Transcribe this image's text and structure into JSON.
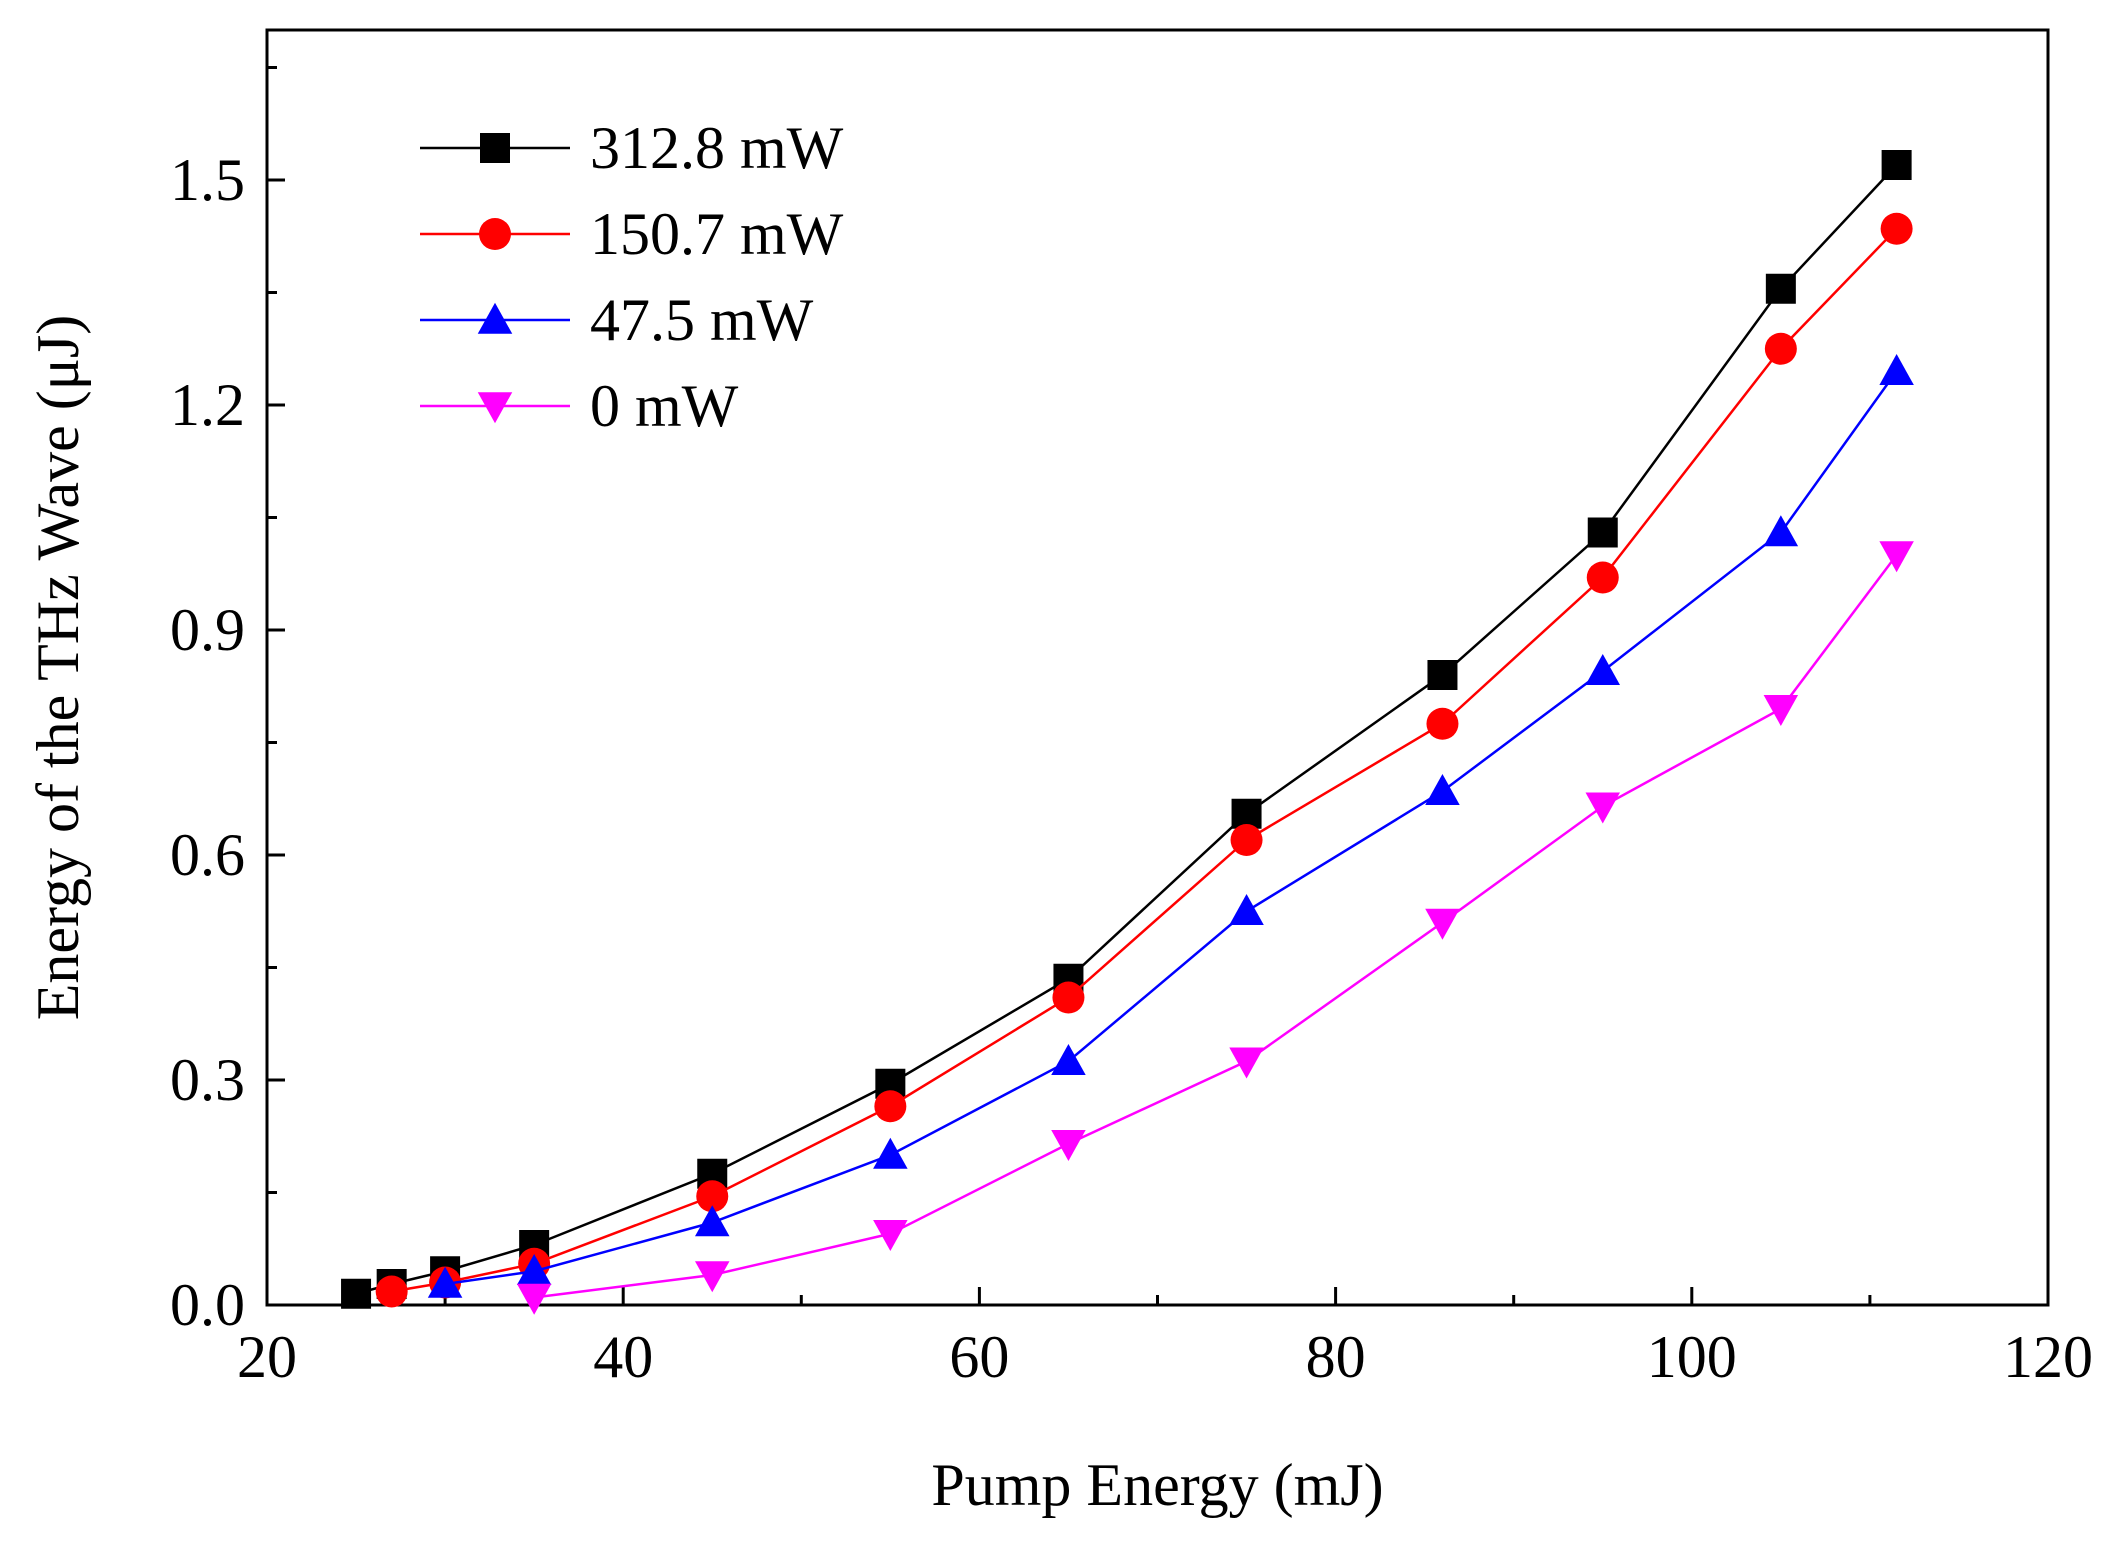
{
  "chart_data": {
    "type": "line",
    "xlabel": "Pump Energy (mJ)",
    "ylabel": "Energy of the THz Wave (μJ)",
    "xlim": [
      20,
      120
    ],
    "ylim": [
      0,
      1.7
    ],
    "xticks": [
      20,
      40,
      60,
      80,
      100,
      120
    ],
    "xtick_labels": [
      "20",
      "40",
      "60",
      "80",
      "100",
      "120"
    ],
    "yticks": [
      0,
      0.3,
      0.6,
      0.9,
      1.2,
      1.5
    ],
    "ytick_labels": [
      "0.0",
      "0.3",
      "0.6",
      "0.9",
      "1.2",
      "1.5"
    ],
    "grid": false,
    "legend_position": "top-left",
    "series": [
      {
        "name": "312.8 mW",
        "marker": "square",
        "color": "#000000",
        "points": [
          [
            25,
            0.015
          ],
          [
            27,
            0.028
          ],
          [
            30,
            0.045
          ],
          [
            35,
            0.08
          ],
          [
            45,
            0.175
          ],
          [
            55,
            0.295
          ],
          [
            65,
            0.435
          ],
          [
            75,
            0.655
          ],
          [
            86,
            0.84
          ],
          [
            95,
            1.03
          ],
          [
            105,
            1.355
          ],
          [
            111.5,
            1.52
          ]
        ]
      },
      {
        "name": "150.7 mW",
        "marker": "circle",
        "color": "#ff0000",
        "points": [
          [
            27,
            0.018
          ],
          [
            30,
            0.03
          ],
          [
            35,
            0.055
          ],
          [
            45,
            0.145
          ],
          [
            55,
            0.265
          ],
          [
            65,
            0.41
          ],
          [
            75,
            0.62
          ],
          [
            86,
            0.775
          ],
          [
            95,
            0.97
          ],
          [
            105,
            1.275
          ],
          [
            111.5,
            1.435
          ]
        ]
      },
      {
        "name": "47.5 mW",
        "marker": "triangle-up",
        "color": "#0000ff",
        "points": [
          [
            30,
            0.028
          ],
          [
            35,
            0.045
          ],
          [
            45,
            0.11
          ],
          [
            55,
            0.2
          ],
          [
            65,
            0.325
          ],
          [
            75,
            0.525
          ],
          [
            86,
            0.685
          ],
          [
            95,
            0.845
          ],
          [
            105,
            1.03
          ],
          [
            111.5,
            1.245
          ]
        ]
      },
      {
        "name": "0 mW",
        "marker": "triangle-down",
        "color": "#ff00ff",
        "points": [
          [
            35,
            0.01
          ],
          [
            45,
            0.04
          ],
          [
            55,
            0.095
          ],
          [
            65,
            0.215
          ],
          [
            75,
            0.325
          ],
          [
            86,
            0.51
          ],
          [
            95,
            0.665
          ],
          [
            105,
            0.795
          ],
          [
            111.5,
            1.0
          ]
        ]
      }
    ]
  }
}
